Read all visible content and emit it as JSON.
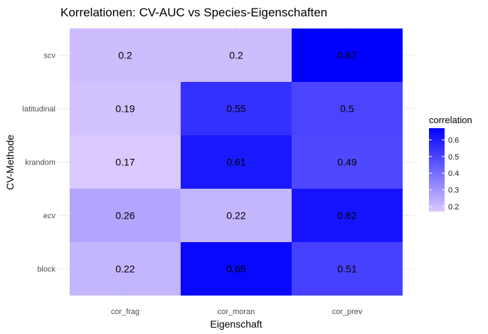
{
  "chart_data": {
    "type": "heatmap",
    "title": "Korrelationen: CV-AUC vs Species-Eigenschaften",
    "xlabel": "Eigenschaft",
    "ylabel": "CV-Methode",
    "x_categories": [
      "cor_frag",
      "cor_moran",
      "cor_prev"
    ],
    "y_categories": [
      "block",
      "ecv",
      "krandom",
      "latitudinal",
      "scv"
    ],
    "values": {
      "scv": {
        "cor_frag": 0.2,
        "cor_moran": 0.2,
        "cor_prev": 0.67
      },
      "latitudinal": {
        "cor_frag": 0.19,
        "cor_moran": 0.55,
        "cor_prev": 0.5
      },
      "krandom": {
        "cor_frag": 0.17,
        "cor_moran": 0.61,
        "cor_prev": 0.49
      },
      "ecv": {
        "cor_frag": 0.26,
        "cor_moran": 0.22,
        "cor_prev": 0.62
      },
      "block": {
        "cor_frag": 0.22,
        "cor_moran": 0.65,
        "cor_prev": 0.51
      }
    },
    "labels": {
      "scv": {
        "cor_frag": "0.2",
        "cor_moran": "0.2",
        "cor_prev": "0.67"
      },
      "latitudinal": {
        "cor_frag": "0.19",
        "cor_moran": "0.55",
        "cor_prev": "0.5"
      },
      "krandom": {
        "cor_frag": "0.17",
        "cor_moran": "0.61",
        "cor_prev": "0.49"
      },
      "ecv": {
        "cor_frag": "0.26",
        "cor_moran": "0.22",
        "cor_prev": "0.62"
      },
      "block": {
        "cor_frag": "0.22",
        "cor_moran": "0.65",
        "cor_prev": "0.51"
      }
    },
    "legend": {
      "title": "correlation",
      "ticks": [
        "0.2",
        "0.3",
        "0.4",
        "0.5",
        "0.6"
      ],
      "tick_values": [
        0.2,
        0.3,
        0.4,
        0.5,
        0.6
      ],
      "range": [
        0.17,
        0.67
      ],
      "low_color": "#dac9ff",
      "high_color": "#0000ff",
      "placement": "right"
    },
    "grid": true
  }
}
